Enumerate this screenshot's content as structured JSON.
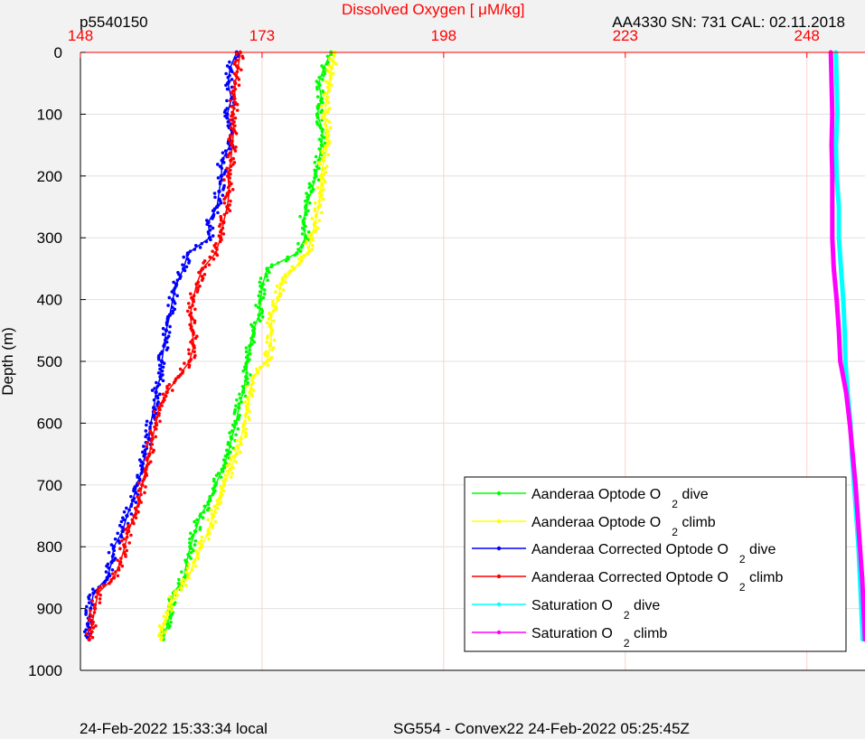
{
  "header": {
    "profile_id": "p5540150",
    "instrument": "AA4330   SN: 731   CAL: 02.11.2018"
  },
  "footer": {
    "local_time": "24-Feb-2022 15:33:34 local",
    "mission": "SG554 - Convex22 24-Feb-2022 05:25:45Z"
  },
  "colors": {
    "background": "#f2f2f2",
    "plot_bg": "#ffffff",
    "x_axis": "#ff0000",
    "x_grid": "#ffd0d0",
    "y_grid": "#e0e0e0"
  },
  "chart_data": {
    "type": "scatter",
    "title": "Dissolved Oxygen [   μM/kg]",
    "xlabel": "Dissolved Oxygen [   μM/kg]",
    "ylabel": "Depth (m)",
    "x_axis_position": "top",
    "y_reversed": true,
    "xlim": [
      148,
      256
    ],
    "ylim": [
      0,
      1000
    ],
    "xticks": [
      148,
      173,
      198,
      223,
      248
    ],
    "yticks": [
      0,
      100,
      200,
      300,
      400,
      500,
      600,
      700,
      800,
      900,
      1000
    ],
    "grid": true,
    "legend_position": "bottom-right",
    "series": [
      {
        "name": "Aanderaa Optode O",
        "subscript": "2",
        "suffix": " dive",
        "color": "#00ff00",
        "depth": [
          0,
          25,
          50,
          75,
          100,
          125,
          150,
          175,
          200,
          225,
          250,
          275,
          300,
          325,
          350,
          375,
          400,
          425,
          450,
          475,
          500,
          525,
          550,
          575,
          600,
          625,
          650,
          675,
          700,
          725,
          750,
          775,
          800,
          825,
          850,
          875,
          900,
          925,
          950
        ],
        "o2": [
          182.5,
          181.5,
          180.8,
          181.2,
          180.6,
          181.3,
          181.2,
          180.8,
          180.4,
          179.8,
          179.0,
          178.7,
          179.0,
          177.8,
          173.7,
          173.1,
          172.8,
          172.6,
          171.8,
          171.3,
          171.0,
          170.8,
          170.4,
          169.8,
          169.4,
          168.8,
          168.3,
          167.5,
          166.6,
          165.8,
          164.5,
          163.8,
          163.1,
          162.6,
          162.3,
          160.8,
          160.4,
          160.0,
          159.4
        ]
      },
      {
        "name": "Aanderaa Optode O",
        "subscript": "2",
        "suffix": " climb",
        "color": "#ffff00",
        "depth": [
          0,
          25,
          50,
          75,
          100,
          125,
          150,
          175,
          200,
          225,
          250,
          275,
          300,
          325,
          350,
          375,
          400,
          425,
          450,
          475,
          500,
          525,
          550,
          575,
          600,
          625,
          650,
          675,
          700,
          725,
          750,
          775,
          800,
          825,
          850,
          875,
          900,
          925,
          950
        ],
        "o2": [
          183.0,
          182.6,
          182.2,
          181.9,
          181.6,
          181.9,
          182.0,
          181.5,
          181.1,
          181.1,
          180.8,
          180.3,
          179.8,
          179.3,
          177.4,
          175.6,
          175.2,
          174.2,
          174.4,
          174.1,
          173.7,
          171.8,
          171.3,
          171.0,
          170.6,
          170.1,
          169.5,
          168.6,
          167.8,
          166.9,
          166.3,
          165.6,
          164.7,
          163.6,
          162.9,
          161.0,
          160.2,
          159.5,
          159.1
        ]
      },
      {
        "name": "Aanderaa Corrected Optode O",
        "subscript": "2",
        "suffix": " dive",
        "color": "#0000ff",
        "depth": [
          0,
          25,
          50,
          75,
          100,
          125,
          150,
          175,
          200,
          225,
          250,
          275,
          300,
          325,
          350,
          375,
          400,
          425,
          450,
          475,
          500,
          525,
          550,
          575,
          600,
          625,
          650,
          675,
          700,
          725,
          750,
          775,
          800,
          825,
          850,
          875,
          900,
          925,
          950
        ],
        "o2": [
          169.5,
          168.6,
          168.3,
          168.8,
          168.2,
          168.8,
          168.6,
          167.5,
          167.4,
          167.1,
          166.8,
          165.6,
          165.8,
          162.8,
          162.2,
          161.2,
          160.7,
          160.3,
          159.8,
          159.5,
          159.2,
          159.0,
          158.4,
          158.1,
          157.7,
          157.4,
          156.9,
          156.5,
          155.8,
          155.2,
          154.4,
          153.8,
          152.6,
          152.3,
          151.7,
          149.8,
          149.4,
          149.0,
          149.2
        ]
      },
      {
        "name": "Aanderaa Corrected Optode O",
        "subscript": "2",
        "suffix": " climb",
        "color": "#ff0000",
        "depth": [
          0,
          25,
          50,
          75,
          100,
          125,
          150,
          175,
          200,
          225,
          250,
          275,
          300,
          325,
          350,
          375,
          400,
          425,
          450,
          475,
          500,
          525,
          550,
          575,
          600,
          625,
          650,
          675,
          700,
          725,
          750,
          775,
          800,
          825,
          850,
          875,
          900,
          925,
          950
        ],
        "o2": [
          170.0,
          169.7,
          169.3,
          169.2,
          169.0,
          169.1,
          168.9,
          168.7,
          168.3,
          168.5,
          168.2,
          167.7,
          167.3,
          166.6,
          164.8,
          164.0,
          163.5,
          163.1,
          163.4,
          163.6,
          163.0,
          161.5,
          159.9,
          158.8,
          158.4,
          157.9,
          157.5,
          157.0,
          156.5,
          156.1,
          155.4,
          154.6,
          154.1,
          153.5,
          152.6,
          150.4,
          150.0,
          149.6,
          149.2
        ]
      },
      {
        "name": "Saturation O",
        "subscript": "2",
        "suffix": " dive",
        "color": "#00ffff",
        "depth": [
          0,
          50,
          100,
          150,
          200,
          250,
          300,
          350,
          400,
          450,
          500,
          550,
          600,
          650,
          700,
          750,
          800,
          850,
          900,
          950
        ],
        "o2": [
          252.0,
          252.1,
          252.2,
          252.0,
          252.1,
          252.4,
          252.4,
          252.7,
          253.0,
          253.2,
          253.3,
          253.6,
          254.0,
          254.2,
          254.5,
          254.8,
          255.1,
          255.3,
          255.5,
          255.7
        ]
      },
      {
        "name": "Saturation O",
        "subscript": "2",
        "suffix": " climb",
        "color": "#ff00ff",
        "depth": [
          0,
          50,
          100,
          150,
          200,
          250,
          300,
          350,
          400,
          450,
          500,
          550,
          600,
          650,
          700,
          750,
          800,
          850,
          900,
          950
        ],
        "o2": [
          251.3,
          251.4,
          251.5,
          251.4,
          251.5,
          251.5,
          251.5,
          251.7,
          252.1,
          252.4,
          252.6,
          253.4,
          253.9,
          254.3,
          254.7,
          255.0,
          255.3,
          255.6,
          255.8,
          256.0
        ]
      }
    ]
  }
}
